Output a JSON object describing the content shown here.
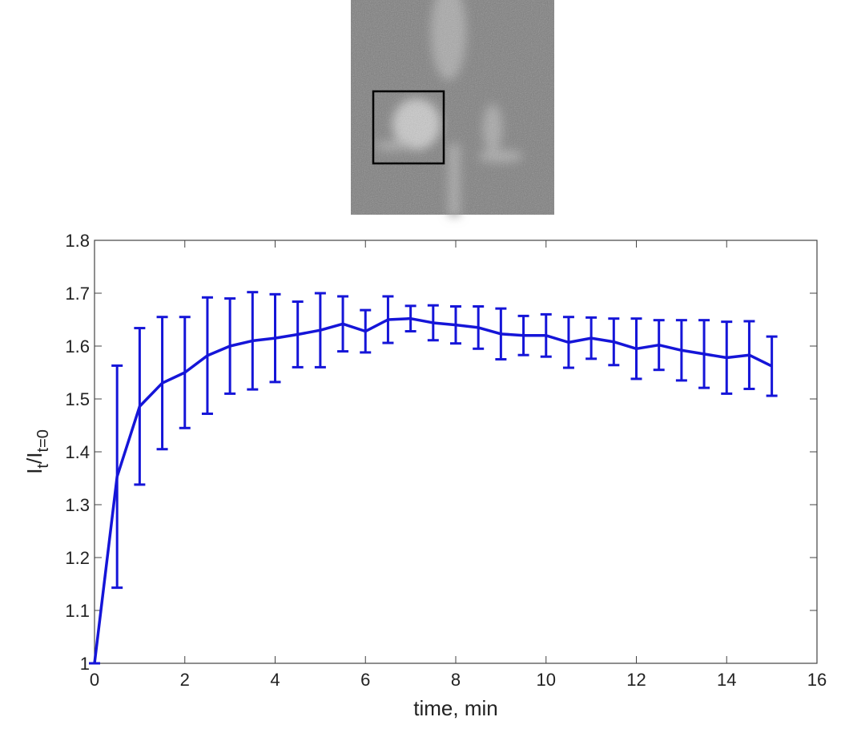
{
  "chart_data": {
    "type": "line",
    "xlabel": "time,  min",
    "ylabel_parts": [
      "I",
      "t",
      "/I",
      "t=0"
    ],
    "xlim": [
      0,
      16
    ],
    "xticks": [
      0,
      2,
      4,
      6,
      8,
      10,
      12,
      14,
      16
    ],
    "ylim": [
      1,
      1.8
    ],
    "yticks": [
      1,
      1.1,
      1.2,
      1.3,
      1.4,
      1.5,
      1.6,
      1.7,
      1.8
    ],
    "grid": false,
    "x": [
      0,
      0.5,
      1,
      1.5,
      2,
      2.5,
      3,
      3.5,
      4,
      4.5,
      5,
      5.5,
      6,
      6.5,
      7,
      7.5,
      8,
      8.5,
      9,
      9.5,
      10,
      10.5,
      11,
      11.5,
      12,
      12.5,
      13,
      13.5,
      14,
      14.5,
      15
    ],
    "series": [
      {
        "color": "#1515d8",
        "values": [
          1.0,
          1.353,
          1.486,
          1.53,
          1.55,
          1.582,
          1.6,
          1.61,
          1.615,
          1.622,
          1.63,
          1.642,
          1.628,
          1.65,
          1.652,
          1.644,
          1.64,
          1.635,
          1.623,
          1.62,
          1.62,
          1.607,
          1.615,
          1.608,
          1.595,
          1.602,
          1.592,
          1.585,
          1.578,
          1.583,
          1.562
        ],
        "errors": [
          0,
          0.21,
          0.148,
          0.125,
          0.105,
          0.11,
          0.09,
          0.092,
          0.083,
          0.062,
          0.07,
          0.052,
          0.04,
          0.044,
          0.024,
          0.033,
          0.035,
          0.04,
          0.048,
          0.037,
          0.04,
          0.048,
          0.039,
          0.044,
          0.057,
          0.047,
          0.057,
          0.064,
          0.068,
          0.064,
          0.056
        ]
      }
    ]
  }
}
